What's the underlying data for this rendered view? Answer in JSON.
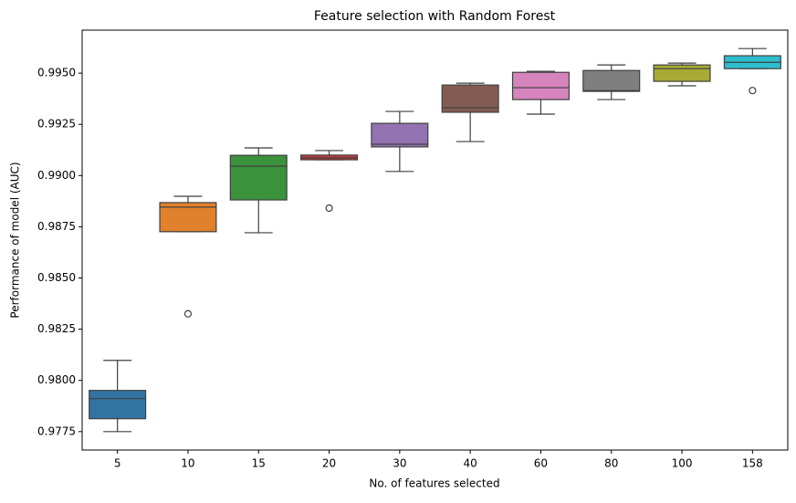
{
  "chart_data": {
    "type": "box",
    "title": "Feature selection with Random Forest",
    "x_label": "No. of features selected",
    "y_label": "Performance of model (AUC)",
    "categories": [
      "5",
      "10",
      "15",
      "20",
      "30",
      "40",
      "60",
      "80",
      "100",
      "158"
    ],
    "colors": [
      "#3274a1",
      "#e1812c",
      "#3a923a",
      "#c03d3e",
      "#9372b2",
      "#845b53",
      "#d684bd",
      "#7f7f7f",
      "#a9aa35",
      "#2ebdcc"
    ],
    "boxes": [
      {
        "min": 0.9775,
        "q1": 0.97813,
        "median": 0.97911,
        "q3": 0.97951,
        "max": 0.98098,
        "outliers": []
      },
      {
        "min": 0.98726,
        "q1": 0.98726,
        "median": 0.98846,
        "q3": 0.98868,
        "max": 0.98899,
        "outliers": [
          0.98325
        ]
      },
      {
        "min": 0.98721,
        "q1": 0.98881,
        "median": 0.99046,
        "q3": 0.99099,
        "max": 0.99135,
        "outliers": []
      },
      {
        "min": 0.99077,
        "q1": 0.99077,
        "median": 0.99086,
        "q3": 0.991,
        "max": 0.99122,
        "outliers": [
          0.98841
        ]
      },
      {
        "min": 0.9902,
        "q1": 0.9914,
        "median": 0.99153,
        "q3": 0.99255,
        "max": 0.99313,
        "outliers": []
      },
      {
        "min": 0.99166,
        "q1": 0.99309,
        "median": 0.99331,
        "q3": 0.99442,
        "max": 0.99451,
        "outliers": []
      },
      {
        "min": 0.993,
        "q1": 0.99371,
        "median": 0.99429,
        "q3": 0.99504,
        "max": 0.99509,
        "outliers": []
      },
      {
        "min": 0.99371,
        "q1": 0.99411,
        "median": 0.99415,
        "q3": 0.99513,
        "max": 0.9954,
        "outliers": []
      },
      {
        "min": 0.99438,
        "q1": 0.9946,
        "median": 0.99522,
        "q3": 0.9954,
        "max": 0.99549,
        "outliers": []
      },
      {
        "min": 0.99522,
        "q1": 0.99522,
        "median": 0.99553,
        "q3": 0.99585,
        "max": 0.9962,
        "outliers": [
          0.99415
        ]
      }
    ],
    "ylim": [
      0.9766,
      0.9971
    ],
    "yticks": [
      0.9775,
      {
        "value": 0.98,
        "label": "0.9800"
      },
      0.9825,
      {
        "value": 0.985,
        "label": "0.9850"
      },
      0.9875,
      {
        "value": 0.99,
        "label": "0.9900"
      },
      0.9925,
      {
        "value": 0.995,
        "label": "0.9950"
      }
    ],
    "grid": false
  }
}
